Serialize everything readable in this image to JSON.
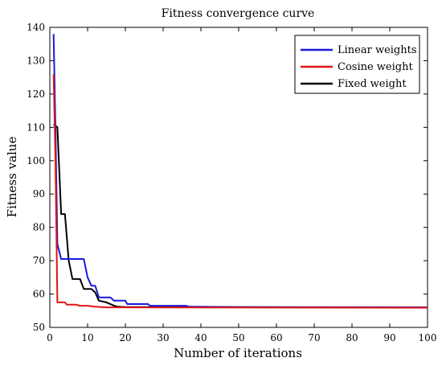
{
  "chart_data": {
    "type": "line",
    "title": "Fitness convergence curve",
    "xlabel": "Number of iterations",
    "ylabel": "Fitness value",
    "xlim": [
      0,
      100
    ],
    "ylim": [
      50,
      140
    ],
    "xticks": [
      0,
      10,
      20,
      30,
      40,
      50,
      60,
      70,
      80,
      90,
      100
    ],
    "yticks": [
      50,
      60,
      70,
      80,
      90,
      100,
      110,
      120,
      130,
      140
    ],
    "legend_position": "top-right",
    "grid": false,
    "series": [
      {
        "name": "Linear weights",
        "color": "#1a1adb",
        "points": [
          [
            1,
            138
          ],
          [
            1.5,
            110
          ],
          [
            2,
            75
          ],
          [
            3,
            70.5
          ],
          [
            9,
            70.5
          ],
          [
            10,
            65
          ],
          [
            11,
            62.5
          ],
          [
            12,
            62.5
          ],
          [
            13,
            59
          ],
          [
            16,
            59
          ],
          [
            17,
            58
          ],
          [
            20,
            58
          ],
          [
            20.5,
            57
          ],
          [
            26,
            57
          ],
          [
            26.5,
            56.5
          ],
          [
            36,
            56.5
          ],
          [
            37,
            56.2
          ],
          [
            50,
            56.1
          ],
          [
            100,
            56.0
          ]
        ]
      },
      {
        "name": "Cosine weight",
        "color": "#e01414",
        "points": [
          [
            1,
            126
          ],
          [
            1.5,
            100
          ],
          [
            2,
            57.5
          ],
          [
            4,
            57.5
          ],
          [
            4.5,
            56.8
          ],
          [
            7,
            56.8
          ],
          [
            8,
            56.5
          ],
          [
            10,
            56.5
          ],
          [
            12,
            56.2
          ],
          [
            15,
            56.0
          ],
          [
            17,
            56.0
          ],
          [
            100,
            55.9
          ]
        ]
      },
      {
        "name": "Fixed weight",
        "color": "#000000",
        "points": [
          [
            1,
            111
          ],
          [
            2,
            110
          ],
          [
            3,
            84
          ],
          [
            4,
            84
          ],
          [
            5,
            70
          ],
          [
            6,
            64.5
          ],
          [
            8,
            64.5
          ],
          [
            9,
            61.5
          ],
          [
            11,
            61.5
          ],
          [
            12,
            60.5
          ],
          [
            13,
            58
          ],
          [
            15,
            57.5
          ],
          [
            17,
            56.5
          ],
          [
            18,
            56.2
          ],
          [
            20,
            56.1
          ],
          [
            100,
            56.0
          ]
        ]
      }
    ]
  }
}
